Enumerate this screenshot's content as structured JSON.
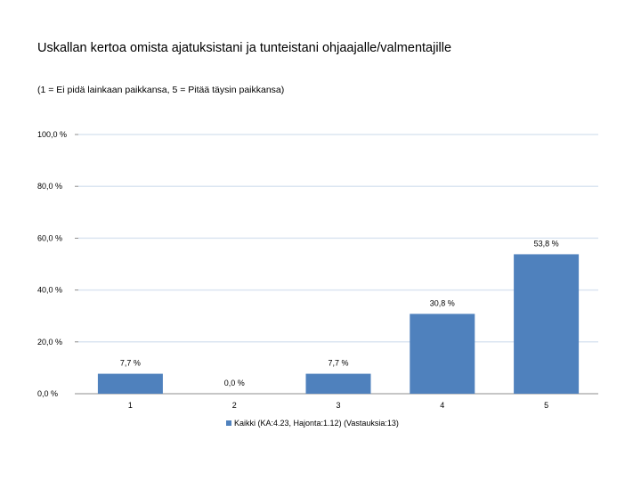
{
  "chart_data": {
    "type": "bar",
    "title": "Uskallan kertoa omista ajatuksistani ja tunteistani ohjaajalle/valmentajille",
    "subtitle": "(1 = Ei pidä lainkaan paikkansa, 5 = Pitää täysin paikkansa)",
    "categories": [
      "1",
      "2",
      "3",
      "4",
      "5"
    ],
    "series": [
      {
        "name": "Kaikki (KA:4.23, Hajonta:1.12) (Vastauksia:13)",
        "values": [
          7.7,
          0.0,
          7.7,
          30.8,
          53.8
        ],
        "labels": [
          "7,7 %",
          "0,0 %",
          "7,7 %",
          "30,8 %",
          "53,8 %"
        ],
        "color": "#4f81bd"
      }
    ],
    "ylim": [
      0,
      100
    ],
    "yticks": [
      0,
      20,
      40,
      60,
      80,
      100
    ],
    "ytick_labels": [
      "0,0 %",
      "20,0 %",
      "40,0 %",
      "60,0 %",
      "80,0 %",
      "100,0 %"
    ],
    "grid": true,
    "grid_color": "#dbe5f1",
    "legend_position": "bottom"
  }
}
